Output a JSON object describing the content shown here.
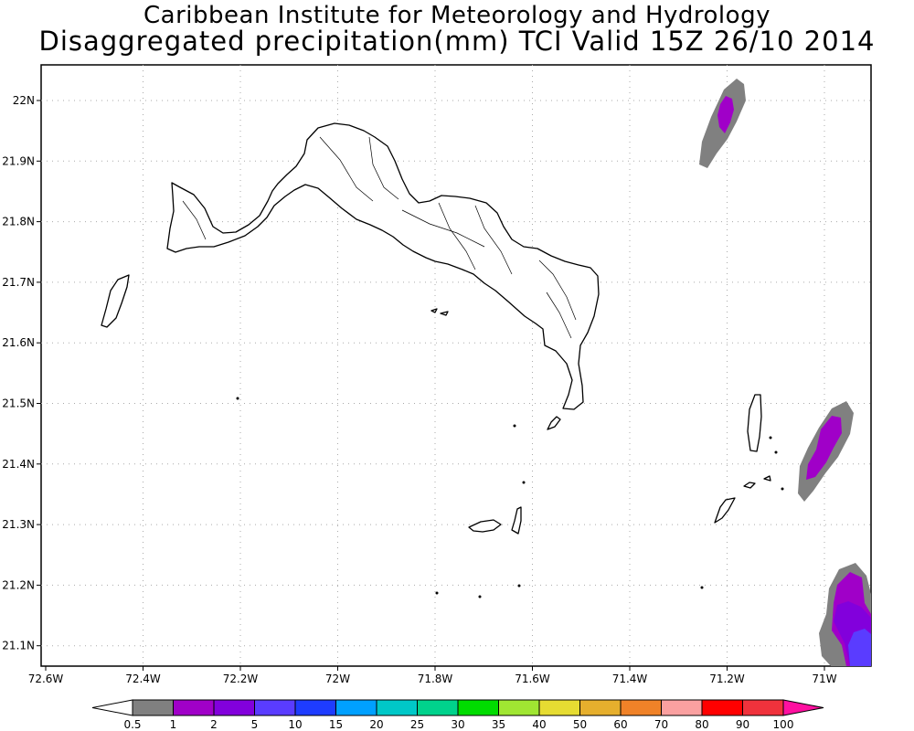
{
  "header": {
    "title": "Caribbean Institute for Meteorology and Hydrology",
    "subtitle": "Disaggregated precipitation(mm) TCI Valid 15Z 26/10 2014"
  },
  "map": {
    "lon_labels": [
      "72.6W",
      "72.4W",
      "72.2W",
      "72W",
      "71.8W",
      "71.6W",
      "71.4W",
      "71.2W",
      "71W"
    ],
    "lat_labels": [
      "22N",
      "21.9N",
      "21.8N",
      "21.7N",
      "21.6N",
      "21.5N",
      "21.4N",
      "21.3N",
      "21.2N",
      "21.1N"
    ],
    "grid": true,
    "precip_cells": [
      {
        "lon": -71.19,
        "lat": 21.98,
        "max_class": "1-2"
      },
      {
        "lon": -70.99,
        "lat": 21.42,
        "max_class": "1-2"
      },
      {
        "lon": -70.94,
        "lat": 21.16,
        "max_class": "5-10"
      }
    ]
  },
  "colorbar": {
    "labels": [
      "0.5",
      "1",
      "2",
      "5",
      "10",
      "15",
      "20",
      "25",
      "30",
      "35",
      "40",
      "50",
      "60",
      "70",
      "80",
      "90",
      "100"
    ],
    "colors": [
      "#808080",
      "#a000c8",
      "#8200dc",
      "#5a3cff",
      "#1e3cff",
      "#00a0ff",
      "#00c8c8",
      "#00d28c",
      "#00dc00",
      "#a0e632",
      "#e6dc32",
      "#e6af2d",
      "#f08228",
      "#faa0a0",
      "#ff0000",
      "#f0323c"
    ],
    "under_color": "#ffffff",
    "over_color": "#ff10a0"
  }
}
